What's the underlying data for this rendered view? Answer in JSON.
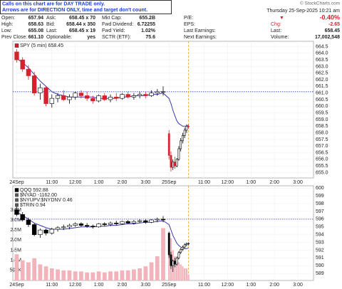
{
  "header": {
    "notice": [
      "Calls on this chart are for DAY TRADE only.",
      "Arrows are for DIRECTION ONLY, time and target don't count."
    ],
    "copyright": "© StockCharts.com",
    "datetime": "Thursday 25-Sep-2025 10:21 am",
    "quote": [
      [
        [
          "Open:",
          "657.94"
        ],
        [
          "Ask:",
          "658.45 x 70"
        ],
        [
          "Mkt Cap:",
          "655.2B"
        ],
        [
          "P/E:"
        ],
        [
          "▼",
          "-0.40%"
        ]
      ],
      [
        [
          "High:",
          "658.63"
        ],
        [
          "Bid:",
          "658.44 x 350"
        ],
        [
          "Fwd Dividend:",
          "6.72255"
        ],
        [
          "EPS:"
        ],
        [
          "Chg:",
          "-2.65"
        ]
      ],
      [
        [
          "Low:",
          "655.08"
        ],
        [
          "Last:",
          "658.45 x 19"
        ],
        [
          "Fwd Yield:",
          "1.02%"
        ],
        [
          "Last Earnings:"
        ],
        [
          "Last:",
          "658.45"
        ]
      ],
      [
        [
          "Prev Close:",
          "661.10"
        ],
        [
          "Optionable:",
          "yes"
        ],
        [
          "SCTR (ETF):",
          "75.6"
        ],
        [
          "Next Earnings:"
        ],
        [
          "Volume:",
          "17,002,548"
        ]
      ]
    ]
  },
  "chart_data": [
    {
      "type": "candlestick",
      "x": [
        0,
        3,
        6,
        9,
        12,
        15,
        18,
        21,
        24,
        27,
        30,
        33,
        36,
        39,
        42,
        45,
        48,
        51,
        54,
        57,
        60,
        63,
        66,
        69,
        72,
        75,
        78,
        79,
        80,
        81,
        82,
        83,
        84,
        85,
        86,
        87,
        88
      ],
      "xlim": [
        -2,
        152
      ],
      "xticks": [
        {
          "value": 0,
          "label": "24Sep"
        },
        {
          "value": 18,
          "label": "11:00"
        },
        {
          "value": 30,
          "label": "12:00"
        },
        {
          "value": 42,
          "label": "1:00"
        },
        {
          "value": 54,
          "label": "2:00"
        },
        {
          "value": 66,
          "label": "3:00"
        },
        {
          "value": 78,
          "label": "25Sep"
        },
        {
          "value": 96,
          "label": "11:00"
        },
        {
          "value": 108,
          "label": "12:00"
        },
        {
          "value": 120,
          "label": "1:00"
        },
        {
          "value": 132,
          "label": "2:00"
        },
        {
          "value": 144,
          "label": "3:00"
        }
      ],
      "ylim": [
        654.6,
        664.9
      ],
      "yticks": [
        664.5,
        {
          "value": 664,
          "label": "664.0"
        },
        663.5,
        {
          "value": 663,
          "label": "663.0"
        },
        662.5,
        {
          "value": 662,
          "label": "662.0"
        },
        661.5,
        {
          "value": 661,
          "label": "661.0"
        },
        660.5,
        {
          "value": 660,
          "label": "660.0"
        },
        659.5,
        {
          "value": 659,
          "label": "659.0"
        },
        658.5,
        {
          "value": 658,
          "label": "658.0"
        },
        657.5,
        {
          "value": 657,
          "label": "657.0"
        },
        656.5,
        {
          "value": 656,
          "label": "656.0"
        },
        655.5,
        {
          "value": 655,
          "label": "655.0"
        }
      ],
      "grid": true,
      "hlines": [
        661.1
      ],
      "vlines": [
        88
      ],
      "series": [
        {
          "type": "line",
          "color": "#3a3aa8",
          "values": [
            663.6,
            663.3,
            662.9,
            662.4,
            661.9,
            661.5,
            661.1,
            660.9,
            660.8,
            660.7,
            660.7,
            660.7,
            660.7,
            660.7,
            660.6,
            660.6,
            660.6,
            660.6,
            660.7,
            660.7,
            660.8,
            660.8,
            660.8,
            660.9,
            660.9,
            661.0,
            660.6,
            660.2,
            659.7,
            659.3,
            658.9,
            658.7,
            658.6,
            658.5,
            658.5,
            658.5,
            658.6
          ]
        },
        {
          "type": "candlestick",
          "name": "SPY (5 min) 658.45",
          "up_color": "#000000",
          "down_color": "#d6202e",
          "open": [
            664.1,
            663.5,
            662.8,
            662.3,
            661.0,
            661.4,
            660.2,
            660.6,
            660.8,
            660.5,
            660.7,
            661.0,
            660.8,
            660.6,
            660.4,
            660.8,
            660.5,
            660.7,
            660.6,
            660.9,
            660.7,
            660.8,
            660.9,
            660.8,
            661.0,
            661.1,
            657.94,
            656.3,
            655.4,
            655.8,
            655.5,
            656.0,
            656.8,
            657.4,
            657.8,
            658.2,
            658.5
          ],
          "high": [
            664.3,
            663.7,
            663.1,
            662.6,
            661.7,
            661.5,
            660.9,
            661.0,
            661.2,
            660.9,
            661.1,
            661.2,
            661.1,
            660.8,
            660.9,
            661.0,
            660.9,
            661.0,
            661.0,
            661.1,
            661.0,
            661.1,
            661.1,
            661.2,
            661.3,
            661.5,
            658.2,
            656.6,
            656.0,
            656.2,
            656.1,
            657.0,
            657.6,
            658.0,
            658.4,
            658.63,
            658.6
          ],
          "low": [
            663.3,
            662.6,
            662.0,
            660.8,
            660.5,
            660.0,
            659.9,
            660.3,
            660.4,
            660.2,
            660.5,
            660.6,
            660.4,
            660.2,
            660.3,
            660.4,
            660.3,
            660.4,
            660.5,
            660.6,
            660.5,
            660.6,
            660.6,
            660.7,
            660.8,
            660.8,
            656.0,
            655.08,
            655.2,
            655.3,
            655.4,
            655.9,
            656.6,
            657.2,
            657.6,
            658.0,
            658.3
          ],
          "close": [
            663.5,
            662.8,
            662.3,
            661.0,
            661.4,
            660.2,
            660.6,
            660.8,
            660.5,
            660.7,
            661.0,
            660.8,
            660.6,
            660.4,
            660.8,
            660.5,
            660.7,
            660.6,
            660.9,
            660.7,
            660.8,
            660.9,
            660.8,
            661.0,
            661.1,
            661.1,
            656.3,
            655.4,
            655.8,
            655.5,
            656.0,
            656.8,
            657.4,
            657.8,
            658.2,
            658.5,
            658.45
          ]
        }
      ]
    },
    {
      "type": "candlestick",
      "x": [
        0,
        3,
        6,
        9,
        12,
        15,
        18,
        21,
        24,
        27,
        30,
        33,
        36,
        39,
        42,
        45,
        48,
        51,
        54,
        57,
        60,
        63,
        66,
        69,
        72,
        75,
        78,
        79,
        80,
        81,
        82,
        83,
        84,
        85,
        86,
        87,
        88
      ],
      "xlim": [
        -2,
        152
      ],
      "xticks": [
        {
          "value": 0,
          "label": "24Sep"
        },
        {
          "value": 18,
          "label": "11:00"
        },
        {
          "value": 30,
          "label": "12:00"
        },
        {
          "value": 42,
          "label": "1:00"
        },
        {
          "value": 54,
          "label": "2:00"
        },
        {
          "value": 66,
          "label": "3:00"
        },
        {
          "value": 78,
          "label": "25Sep"
        },
        {
          "value": 96,
          "label": "11:00"
        },
        {
          "value": 108,
          "label": "12:00"
        },
        {
          "value": 120,
          "label": "1:00"
        },
        {
          "value": 132,
          "label": "2:00"
        },
        {
          "value": 144,
          "label": "3:00"
        }
      ],
      "ylim": [
        588.1,
        600.3
      ],
      "yticks": [
        600,
        599,
        598,
        597,
        596,
        595,
        594,
        593,
        592,
        591,
        590,
        589
      ],
      "y2lim": [
        0,
        4700000
      ],
      "y2ticks": [
        {
          "value": 3500000,
          "label": "3.5M"
        },
        {
          "value": 3000000,
          "label": "3.0M"
        },
        {
          "value": 2500000,
          "label": "2.5M"
        },
        {
          "value": 2000000,
          "label": "2.0M"
        },
        {
          "value": 1500000,
          "label": "1.5M"
        },
        {
          "value": 1000000,
          "label": "1.0M"
        },
        {
          "value": 500000,
          "label": "500K"
        }
      ],
      "grid": true,
      "hlines": [
        596.0
      ],
      "vlines": [
        88
      ],
      "indicators": [
        "$NYAD -1162.00",
        "$NYUPV:$NYDNV 0.46",
        "$TRIN 0.94"
      ],
      "series": [
        {
          "type": "bar",
          "axis": "y2",
          "color": "#f2b3bb",
          "values": [
            1300000,
            1000000,
            900000,
            1100000,
            800000,
            700000,
            600000,
            550000,
            500000,
            500000,
            450000,
            450000,
            400000,
            400000,
            450000,
            400000,
            450000,
            450000,
            500000,
            500000,
            550000,
            600000,
            700000,
            900000,
            1200000,
            2600000,
            1800000,
            2100000,
            1500000,
            1200000,
            1000000,
            900000,
            800000,
            700000,
            600000,
            600000,
            300000
          ]
        },
        {
          "type": "line",
          "color": "#3a3aa8",
          "values": [
            596.9,
            596.5,
            596.0,
            595.5,
            595.2,
            594.9,
            594.7,
            594.7,
            594.7,
            594.8,
            594.9,
            595.0,
            595.0,
            595.0,
            595.1,
            595.1,
            595.2,
            595.2,
            595.3,
            595.4,
            595.4,
            595.5,
            595.6,
            595.6,
            595.7,
            595.8,
            595.3,
            594.6,
            593.9,
            593.4,
            592.9,
            592.6,
            592.4,
            592.3,
            592.2,
            592.2,
            592.3
          ]
        },
        {
          "type": "candlestick",
          "name": "QQQ 592.88",
          "up_color": "#000000",
          "down_color": "#000000",
          "open": [
            597.2,
            596.6,
            595.9,
            595.3,
            594.0,
            594.6,
            594.2,
            594.7,
            594.9,
            595.0,
            595.2,
            595.4,
            595.2,
            595.1,
            595.0,
            595.4,
            595.3,
            595.5,
            595.4,
            595.7,
            595.5,
            595.7,
            595.8,
            595.6,
            595.9,
            596.0,
            594.2,
            591.4,
            590.0,
            590.6,
            590.2,
            591.0,
            591.7,
            592.1,
            592.4,
            592.7,
            592.8
          ],
          "high": [
            597.6,
            596.9,
            596.2,
            595.5,
            594.8,
            594.8,
            594.9,
            595.1,
            595.3,
            595.4,
            595.6,
            595.6,
            595.5,
            595.3,
            595.5,
            595.6,
            595.7,
            595.8,
            595.8,
            595.9,
            595.9,
            596.0,
            596.0,
            596.0,
            596.2,
            596.4,
            594.4,
            591.8,
            590.8,
            591.0,
            591.2,
            591.9,
            592.3,
            592.6,
            592.9,
            593.0,
            593.0
          ],
          "low": [
            596.4,
            595.7,
            595.0,
            593.8,
            593.6,
            593.9,
            594.0,
            594.4,
            594.6,
            594.7,
            595.0,
            595.0,
            594.9,
            594.8,
            594.9,
            595.1,
            595.1,
            595.2,
            595.3,
            595.4,
            595.3,
            595.5,
            595.4,
            595.5,
            595.6,
            595.6,
            591.0,
            589.6,
            589.2,
            589.8,
            590.0,
            590.8,
            591.5,
            591.9,
            592.2,
            592.5,
            592.6
          ],
          "close": [
            596.6,
            595.9,
            595.3,
            594.0,
            594.6,
            594.2,
            594.7,
            594.9,
            595.0,
            595.2,
            595.4,
            595.2,
            595.1,
            595.0,
            595.4,
            595.3,
            595.5,
            595.4,
            595.7,
            595.5,
            595.7,
            595.8,
            595.6,
            595.9,
            596.0,
            595.9,
            591.4,
            590.0,
            590.6,
            590.2,
            591.0,
            591.7,
            592.1,
            592.4,
            592.7,
            592.8,
            592.88
          ]
        }
      ]
    }
  ]
}
